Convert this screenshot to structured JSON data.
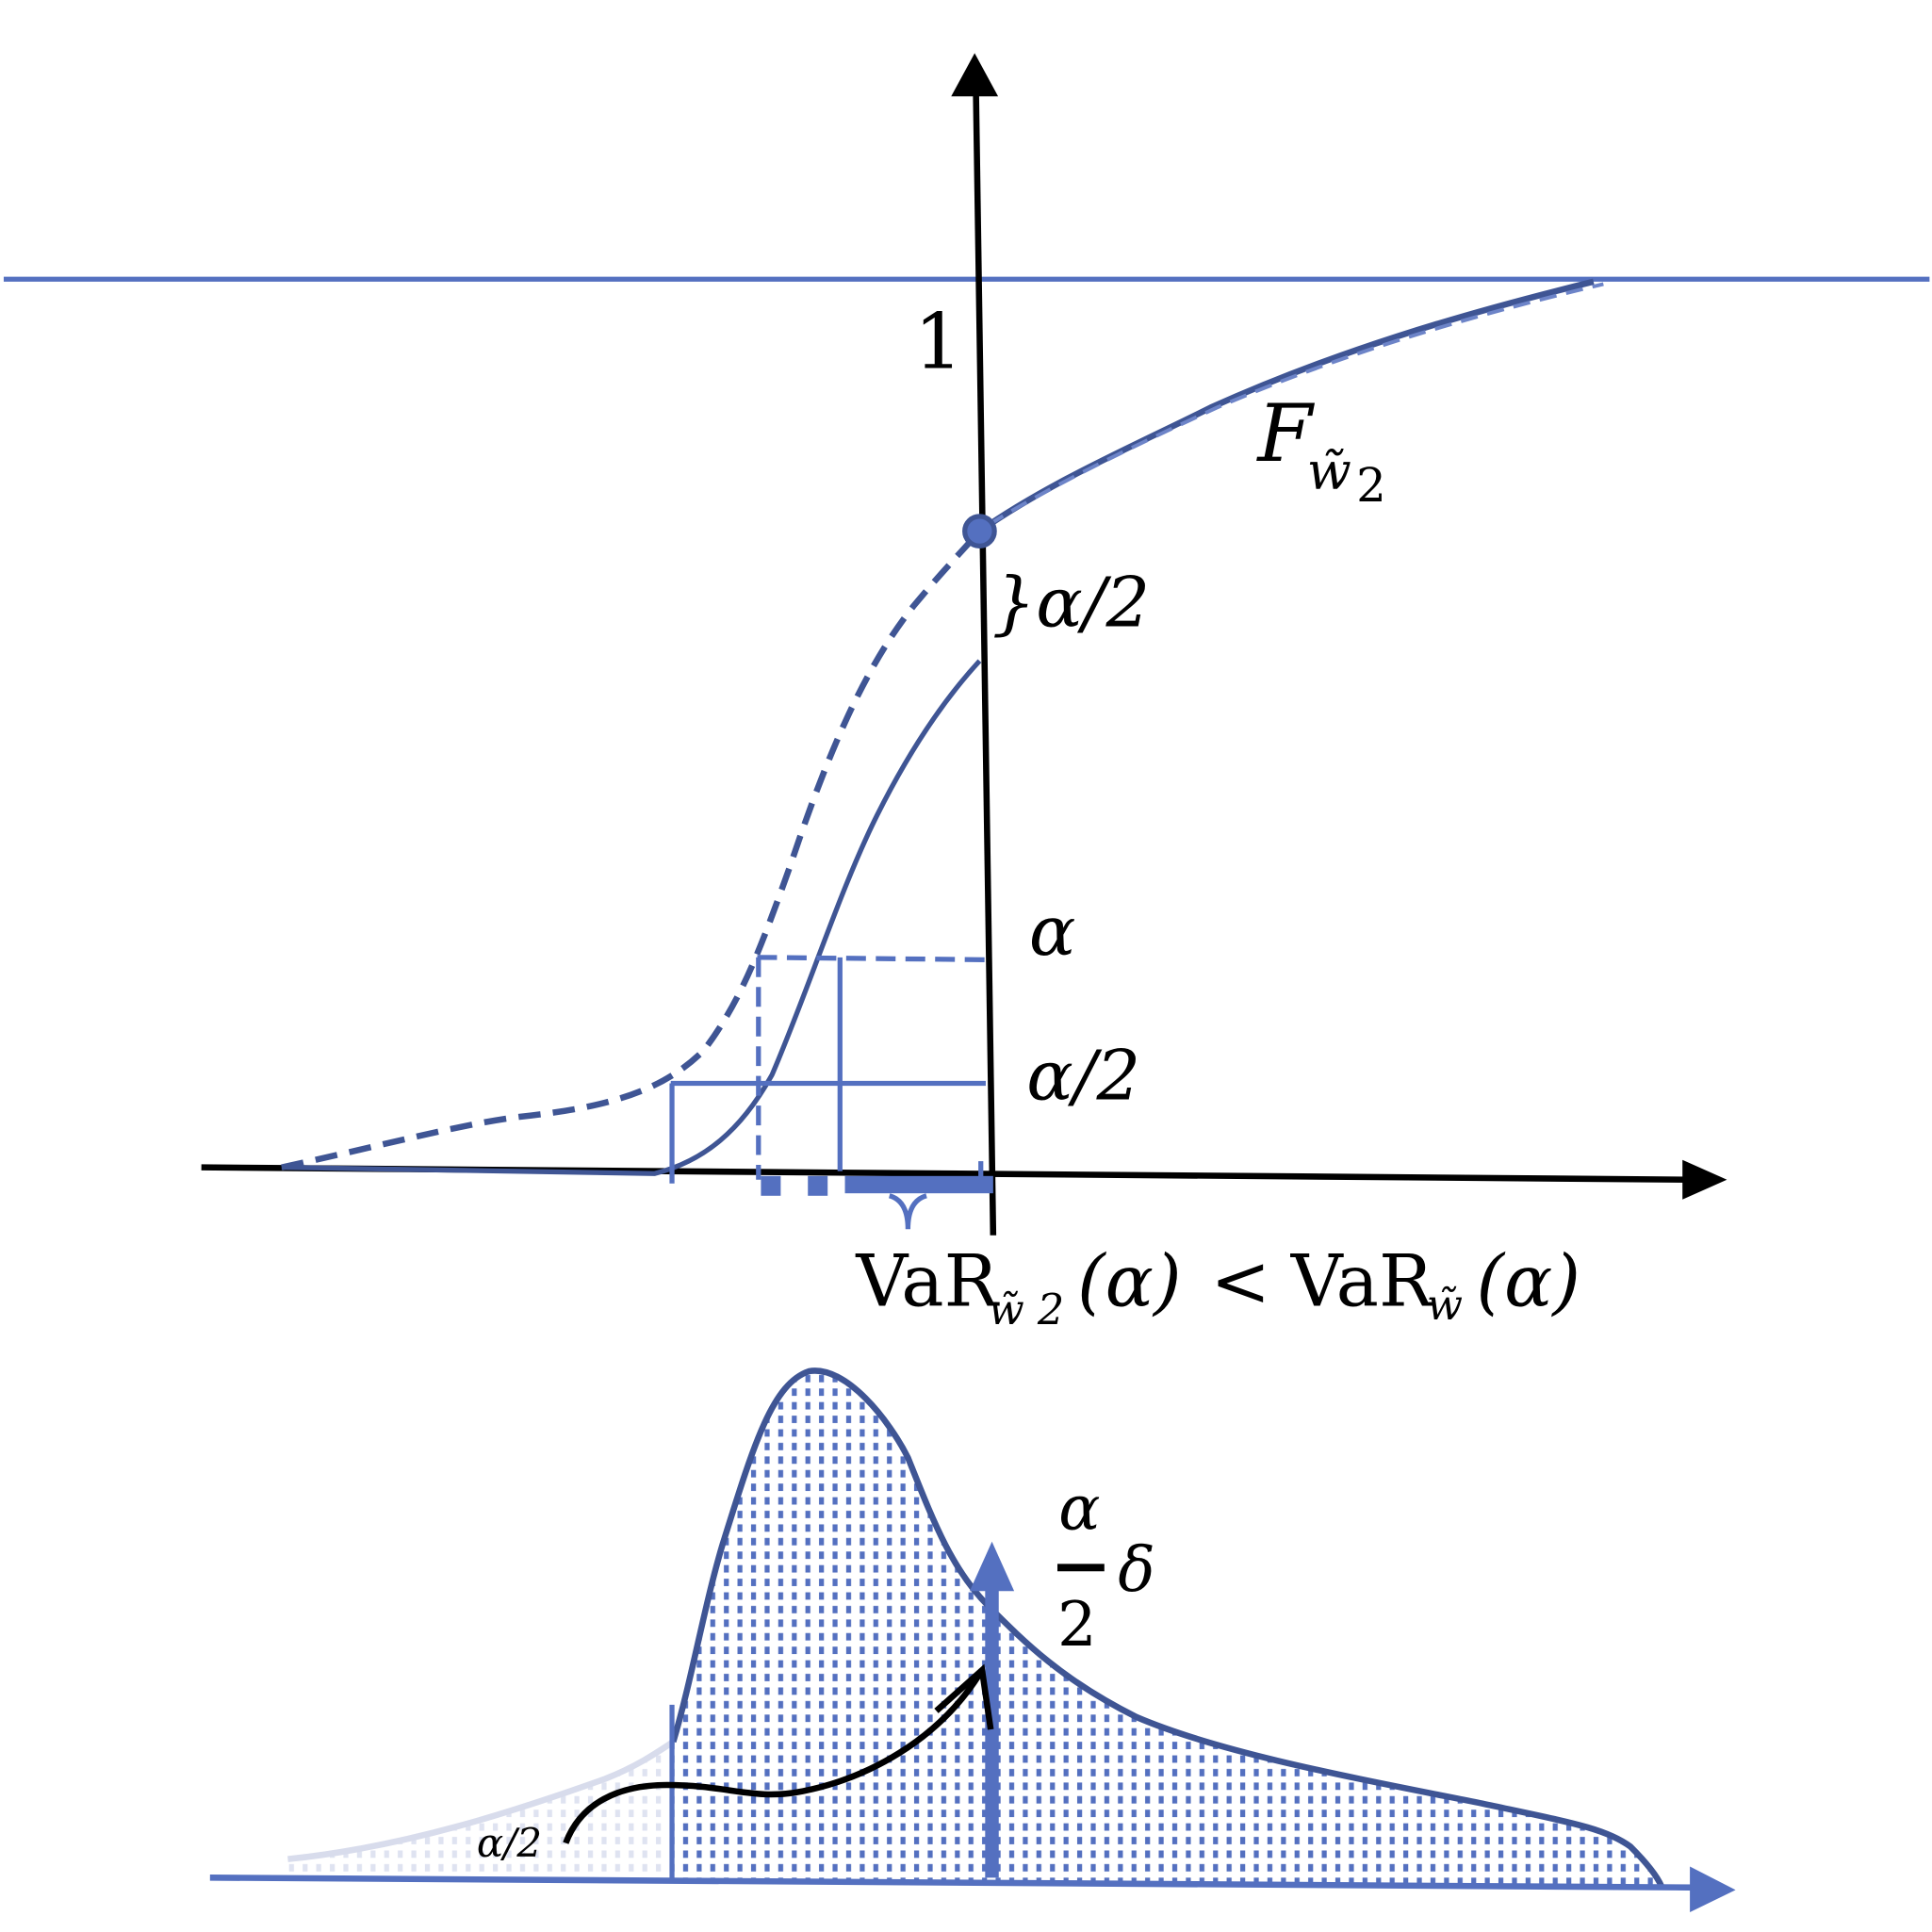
{
  "colors": {
    "accent": "#5470c0",
    "dark_curve": "#3f5594",
    "axis": "#000000",
    "light_tail": "#d8dcec"
  },
  "labels": {
    "one": "1",
    "cdf_name": "F",
    "cdf_sub": "w̃",
    "cdf_sub2": "2",
    "gap_label": "}α/2",
    "alpha": "α",
    "alpha_half": "α/2",
    "var_left": "VaR",
    "var_left_sub": "w̃ 2",
    "var_arg": "(α)",
    "lt": "<",
    "var_right": "VaR",
    "var_right_sub": "w̃",
    "var_right_arg": "(α)",
    "frac_num": "α",
    "frac_den": "2",
    "delta": "δ",
    "small_alpha_half": "α/2"
  }
}
